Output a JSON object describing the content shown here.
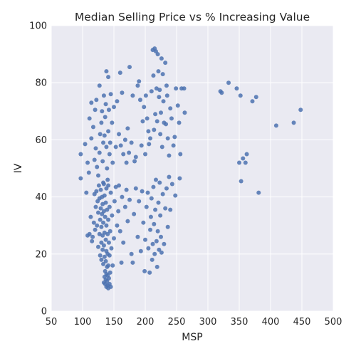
{
  "chart_data": {
    "type": "scatter",
    "title": "Median Selling Price vs % Increasing Value",
    "xlabel": "MSP",
    "ylabel": "IV",
    "xlim": [
      50,
      500
    ],
    "ylim": [
      0,
      100
    ],
    "xticks": [
      50,
      100,
      150,
      200,
      250,
      300,
      350,
      400,
      450,
      500
    ],
    "yticks": [
      0,
      20,
      40,
      60,
      80,
      100
    ],
    "grid": true,
    "colors": {
      "background": "#eaeaf2",
      "grid": "#ffffff",
      "point": "#4c72b0"
    },
    "series": [
      {
        "points": [
          [
            97,
            55
          ],
          [
            97,
            46.5
          ],
          [
            104,
            58.5
          ],
          [
            106,
            41.5
          ],
          [
            108,
            52
          ],
          [
            110,
            48.5
          ],
          [
            111,
            67.5
          ],
          [
            114,
            60.5
          ],
          [
            114,
            73
          ],
          [
            117,
            64.5
          ],
          [
            119,
            53
          ],
          [
            120,
            70.5
          ],
          [
            121,
            57
          ],
          [
            122,
            74
          ],
          [
            123,
            50.5
          ],
          [
            125,
            47.5
          ],
          [
            127,
            55.5
          ],
          [
            127,
            79
          ],
          [
            128,
            62
          ],
          [
            130,
            66
          ],
          [
            131,
            70
          ],
          [
            132,
            52.5
          ],
          [
            133,
            59
          ],
          [
            134,
            44.5
          ],
          [
            134,
            75.5
          ],
          [
            135,
            61.5
          ],
          [
            136,
            68
          ],
          [
            137,
            72.5
          ],
          [
            138,
            57.5
          ],
          [
            138,
            84
          ],
          [
            139,
            50
          ],
          [
            140,
            46
          ],
          [
            141,
            63
          ],
          [
            141,
            82
          ],
          [
            142,
            70.5
          ],
          [
            143,
            55
          ],
          [
            144,
            59
          ],
          [
            145,
            76
          ],
          [
            147,
            66
          ],
          [
            148,
            52
          ],
          [
            150,
            71.5
          ],
          [
            153,
            57.5
          ],
          [
            155,
            73.5
          ],
          [
            158,
            62
          ],
          [
            160,
            83.5
          ],
          [
            161,
            58
          ],
          [
            163,
            76.5
          ],
          [
            165,
            55
          ],
          [
            168,
            60
          ],
          [
            170,
            52
          ],
          [
            172,
            64
          ],
          [
            174,
            55.5
          ],
          [
            175,
            85.5
          ],
          [
            178,
            59
          ],
          [
            180,
            75.5
          ],
          [
            183,
            52.5
          ],
          [
            185,
            54
          ],
          [
            188,
            79
          ],
          [
            190,
            80.5
          ],
          [
            192,
            74
          ],
          [
            194,
            58
          ],
          [
            196,
            66.5
          ],
          [
            198,
            71.5
          ],
          [
            200,
            55
          ],
          [
            201,
            75.5
          ],
          [
            203,
            67.5
          ],
          [
            205,
            63
          ],
          [
            206,
            58.5
          ],
          [
            208,
            60.5
          ],
          [
            210,
            77
          ],
          [
            212,
            91.5
          ],
          [
            213,
            82.5
          ],
          [
            214,
            63.5
          ],
          [
            215,
            92
          ],
          [
            216,
            69
          ],
          [
            217,
            91
          ],
          [
            218,
            78
          ],
          [
            219,
            66.5
          ],
          [
            220,
            90
          ],
          [
            221,
            84
          ],
          [
            222,
            75
          ],
          [
            223,
            77.5
          ],
          [
            224,
            62
          ],
          [
            225,
            69.5
          ],
          [
            226,
            88.5
          ],
          [
            227,
            57.5
          ],
          [
            228,
            83
          ],
          [
            229,
            73.5
          ],
          [
            230,
            66
          ],
          [
            232,
            87
          ],
          [
            233,
            65.5
          ],
          [
            234,
            79
          ],
          [
            235,
            75.5
          ],
          [
            236,
            60.5
          ],
          [
            238,
            54.5
          ],
          [
            240,
            71
          ],
          [
            242,
            67.5
          ],
          [
            245,
            58
          ],
          [
            247,
            61
          ],
          [
            249,
            78
          ],
          [
            252,
            72
          ],
          [
            254,
            66
          ],
          [
            256,
            55
          ],
          [
            258,
            78
          ],
          [
            262,
            78
          ],
          [
            263,
            69.5
          ],
          [
            320,
            77
          ],
          [
            322,
            76.5
          ],
          [
            333,
            80
          ],
          [
            346,
            78
          ],
          [
            352,
            75.5
          ],
          [
            356,
            53.5
          ],
          [
            362,
            55
          ],
          [
            371,
            73.5
          ],
          [
            377,
            75
          ],
          [
            409,
            65
          ],
          [
            437,
            66
          ],
          [
            448,
            70.5
          ],
          [
            350,
            52
          ],
          [
            360,
            52
          ],
          [
            353,
            45.5
          ],
          [
            381,
            41.5
          ],
          [
            108,
            26.5
          ],
          [
            111,
            27
          ],
          [
            113,
            33
          ],
          [
            115,
            24.5
          ],
          [
            116,
            26
          ],
          [
            118,
            31
          ],
          [
            119,
            41
          ],
          [
            120,
            28.5
          ],
          [
            121,
            36.5
          ],
          [
            122,
            42
          ],
          [
            123,
            30
          ],
          [
            124,
            38.5
          ],
          [
            125,
            22.5
          ],
          [
            125,
            34.5
          ],
          [
            126,
            44
          ],
          [
            127,
            27
          ],
          [
            127,
            39.5
          ],
          [
            128,
            19.5
          ],
          [
            128,
            32
          ],
          [
            129,
            36
          ],
          [
            129,
            42.5
          ],
          [
            130,
            18
          ],
          [
            130,
            24
          ],
          [
            130,
            29.5
          ],
          [
            131,
            34
          ],
          [
            131,
            40
          ],
          [
            132,
            21.5
          ],
          [
            132,
            26.5
          ],
          [
            132,
            37.5
          ],
          [
            133,
            16.5
          ],
          [
            133,
            31
          ],
          [
            133,
            45
          ],
          [
            134,
            10
          ],
          [
            134,
            23
          ],
          [
            134,
            35
          ],
          [
            135,
            12
          ],
          [
            135,
            19
          ],
          [
            135,
            27.5
          ],
          [
            135,
            40.5
          ],
          [
            136,
            9.5
          ],
          [
            136,
            14
          ],
          [
            136,
            33
          ],
          [
            137,
            11
          ],
          [
            137,
            17.5
          ],
          [
            137,
            25
          ],
          [
            137,
            38
          ],
          [
            138,
            8.5
          ],
          [
            138,
            13
          ],
          [
            138,
            21
          ],
          [
            138,
            30
          ],
          [
            138,
            43
          ],
          [
            139,
            10.5
          ],
          [
            139,
            15.5
          ],
          [
            139,
            35.5
          ],
          [
            140,
            9
          ],
          [
            140,
            12.5
          ],
          [
            140,
            20
          ],
          [
            140,
            27
          ],
          [
            141,
            8
          ],
          [
            141,
            16
          ],
          [
            141,
            32
          ],
          [
            141,
            44
          ],
          [
            142,
            11.5
          ],
          [
            142,
            24
          ],
          [
            143,
            9.5
          ],
          [
            143,
            19.5
          ],
          [
            143,
            36.5
          ],
          [
            144,
            13.5
          ],
          [
            144,
            28
          ],
          [
            145,
            8.5
          ],
          [
            145,
            41.5
          ],
          [
            146,
            22
          ],
          [
            147,
            33.5
          ],
          [
            148,
            16
          ],
          [
            150,
            25.5
          ],
          [
            151,
            38.5
          ],
          [
            153,
            43.5
          ],
          [
            155,
            30
          ],
          [
            157,
            35
          ],
          [
            158,
            44
          ],
          [
            160,
            28
          ],
          [
            162,
            17
          ],
          [
            163,
            40
          ],
          [
            165,
            24
          ],
          [
            168,
            36.5
          ],
          [
            170,
            42.5
          ],
          [
            172,
            31.5
          ],
          [
            175,
            39
          ],
          [
            178,
            20
          ],
          [
            180,
            17
          ],
          [
            182,
            34
          ],
          [
            185,
            43
          ],
          [
            188,
            26
          ],
          [
            190,
            38.5
          ],
          [
            193,
            21
          ],
          [
            195,
            42
          ],
          [
            197,
            31
          ],
          [
            199,
            14
          ],
          [
            200,
            25
          ],
          [
            202,
            36.5
          ],
          [
            204,
            41.5
          ],
          [
            205,
            22
          ],
          [
            207,
            13.5
          ],
          [
            208,
            28.5
          ],
          [
            209,
            33
          ],
          [
            210,
            39.5
          ],
          [
            211,
            18
          ],
          [
            212,
            23.5
          ],
          [
            213,
            43.5
          ],
          [
            214,
            30.5
          ],
          [
            215,
            20
          ],
          [
            216,
            35.5
          ],
          [
            217,
            46
          ],
          [
            218,
            24.5
          ],
          [
            219,
            15.5
          ],
          [
            220,
            28
          ],
          [
            221,
            38
          ],
          [
            222,
            21.5
          ],
          [
            223,
            45
          ],
          [
            224,
            33.5
          ],
          [
            225,
            26
          ],
          [
            226,
            20.5
          ],
          [
            228,
            41
          ],
          [
            230,
            23.5
          ],
          [
            232,
            36
          ],
          [
            234,
            43
          ],
          [
            236,
            29.5
          ],
          [
            238,
            47
          ],
          [
            240,
            35.5
          ],
          [
            243,
            44.5
          ],
          [
            248,
            40.5
          ],
          [
            255,
            46.5
          ]
        ]
      }
    ]
  }
}
